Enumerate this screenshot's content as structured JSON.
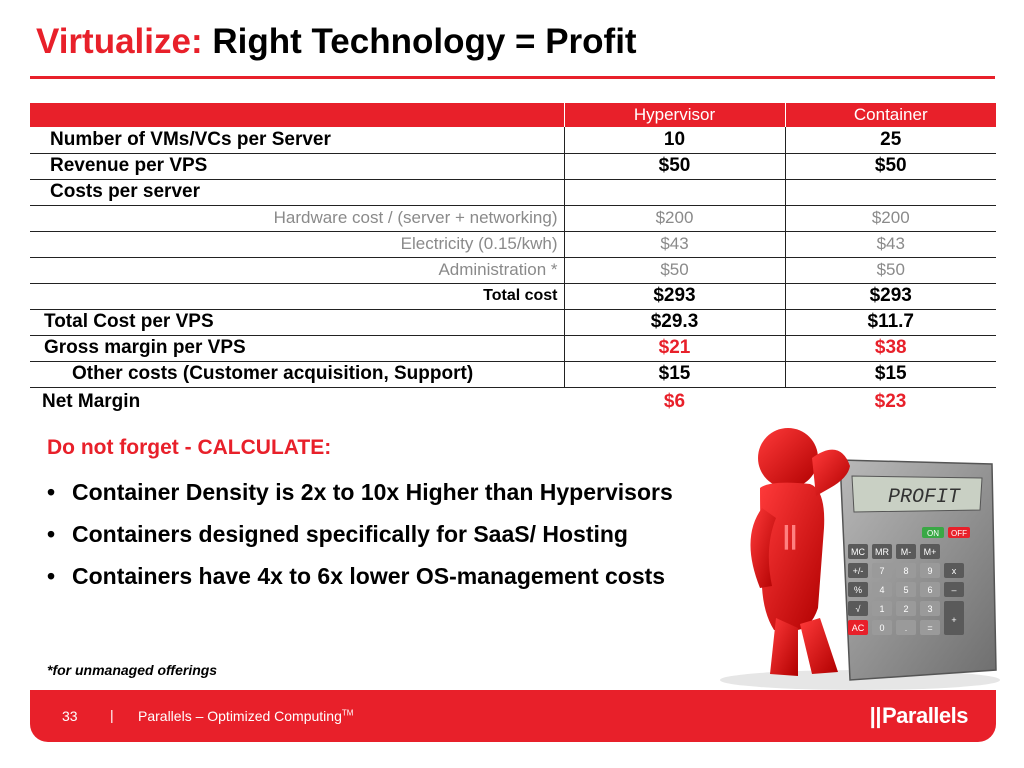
{
  "title": {
    "red_part": "Virtualize:",
    "black_part": "Right Technology = Profit"
  },
  "table": {
    "headers": [
      "",
      "Hypervisor",
      "Container"
    ],
    "rows": [
      {
        "label": "Number of VMs/VCs per Server",
        "hypervisor": "10",
        "container": "25"
      },
      {
        "label": "Revenue per VPS",
        "hypervisor": "$50",
        "container": "$50"
      },
      {
        "label": "Costs per server",
        "hypervisor": "",
        "container": ""
      },
      {
        "label": "Hardware cost / (server + networking)",
        "hypervisor": "$200",
        "container": "$200"
      },
      {
        "label": "Electricity (0.15/kwh)",
        "hypervisor": "$43",
        "container": "$43"
      },
      {
        "label": "Administration *",
        "hypervisor": "$50",
        "container": "$50"
      },
      {
        "label": "Total cost",
        "hypervisor": "$293",
        "container": "$293"
      },
      {
        "label": "Total Cost per VPS",
        "hypervisor": "$29.3",
        "container": "$11.7"
      },
      {
        "label": "Gross margin per VPS",
        "hypervisor": "$21",
        "container": "$38"
      },
      {
        "label": "Other costs (Customer acquisition, Support)",
        "hypervisor": "$15",
        "container": "$15"
      },
      {
        "label": "Net Margin",
        "hypervisor": "$6",
        "container": "$23"
      }
    ]
  },
  "notes": {
    "heading": "Do not forget  - CALCULATE:",
    "bullet_glyph": "•",
    "bullets": [
      "Container Density is 2x to 10x Higher than Hypervisors",
      "Containers designed specifically for SaaS/ Hosting",
      "Containers have 4x to 6x lower OS-management costs"
    ],
    "footnote": "*for unmanaged offerings"
  },
  "illustration": {
    "display_text": "PROFIT",
    "keys": [
      "ON",
      "OFF",
      "MC",
      "MR",
      "M-",
      "M+",
      "+/-",
      "7",
      "8",
      "9",
      "x",
      "%",
      "4",
      "5",
      "6",
      "–",
      "√",
      "1",
      "2",
      "3",
      "+",
      "AC",
      "0",
      ".",
      "="
    ],
    "icon": "red-figure-leaning-on-calculator"
  },
  "footer": {
    "page_number": "33",
    "separator": "|",
    "company": "Parallels – Optimized Computing",
    "trademark": "TM",
    "logo_bars": "||",
    "logo_text": "Parallels"
  },
  "colors": {
    "accent": "#e8202a",
    "text": "#000000",
    "muted": "#8a8a8a"
  }
}
